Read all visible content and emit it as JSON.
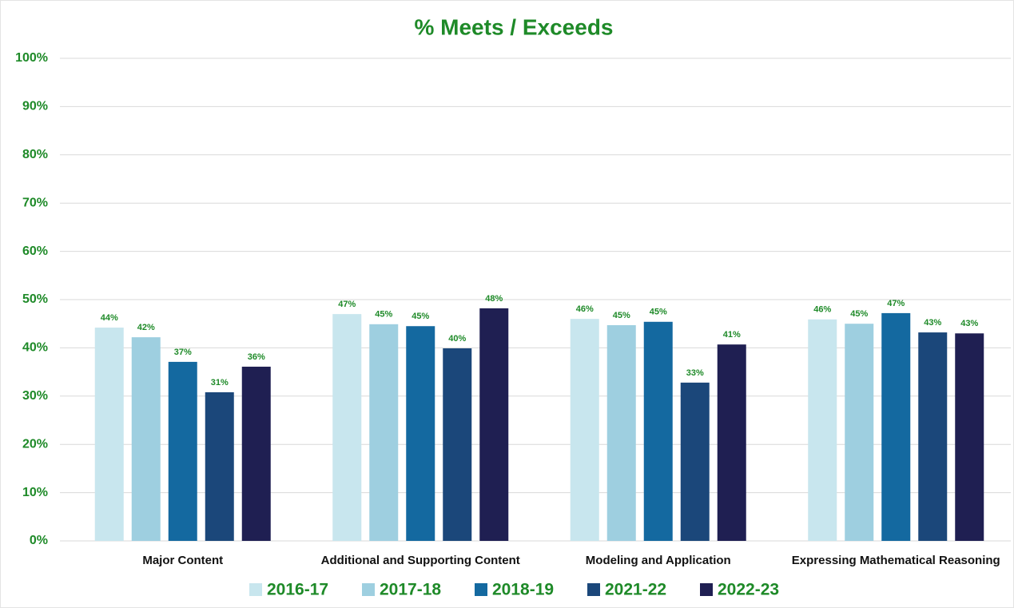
{
  "chart_data": {
    "type": "bar",
    "title": "% Meets / Exceeds",
    "categories": [
      "Major Content",
      "Additional and Supporting Content",
      "Modeling and Application",
      "Expressing Mathematical Reasoning"
    ],
    "series": [
      {
        "name": "2016-17",
        "color": "#c8e6ee",
        "values": [
          44.2,
          47.0,
          46.0,
          45.9
        ],
        "value_labels": [
          "44%",
          "47%",
          "46%",
          "46%"
        ]
      },
      {
        "name": "2017-18",
        "color": "#9ecfe0",
        "values": [
          42.2,
          44.9,
          44.7,
          45.0
        ],
        "value_labels": [
          "42%",
          "45%",
          "45%",
          "45%"
        ]
      },
      {
        "name": "2018-19",
        "color": "#1469a0",
        "values": [
          37.1,
          44.5,
          45.4,
          47.2
        ],
        "value_labels": [
          "37%",
          "45%",
          "45%",
          "47%"
        ]
      },
      {
        "name": "2021-22",
        "color": "#1b477a",
        "values": [
          30.8,
          39.9,
          32.8,
          43.2
        ],
        "value_labels": [
          "31%",
          "40%",
          "33%",
          "43%"
        ]
      },
      {
        "name": "2022-23",
        "color": "#1f1f52",
        "values": [
          36.1,
          48.2,
          40.7,
          43.0
        ],
        "value_labels": [
          "36%",
          "48%",
          "41%",
          "43%"
        ]
      }
    ],
    "ylim": [
      0,
      100
    ],
    "yticks": [
      {
        "value": 0,
        "label": "0%"
      },
      {
        "value": 10,
        "label": "10%"
      },
      {
        "value": 20,
        "label": "20%"
      },
      {
        "value": 30,
        "label": "30%"
      },
      {
        "value": 40,
        "label": "40%"
      },
      {
        "value": 50,
        "label": "50%"
      },
      {
        "value": 60,
        "label": "60%"
      },
      {
        "value": 70,
        "label": "70%"
      },
      {
        "value": 80,
        "label": "80%"
      },
      {
        "value": 90,
        "label": "90%"
      },
      {
        "value": 100,
        "label": "100%"
      }
    ],
    "grid": true,
    "legend": "bottom"
  }
}
